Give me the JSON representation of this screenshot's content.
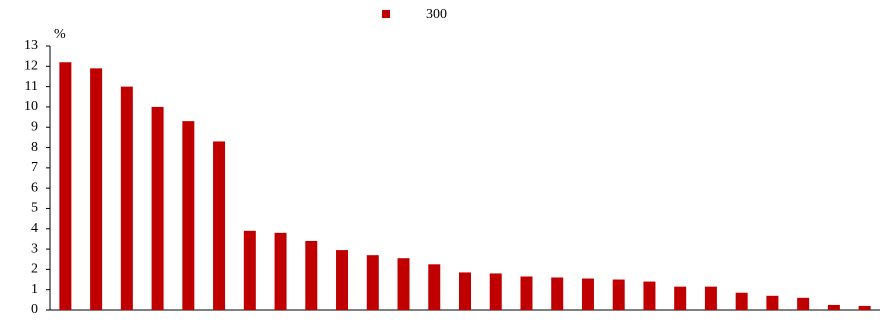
{
  "chart_data": {
    "type": "bar",
    "y_label": "%",
    "categories": [
      null,
      null,
      null,
      null,
      null,
      null,
      null,
      null,
      null,
      null,
      null,
      null,
      null,
      null,
      null,
      null,
      null,
      null,
      null,
      null,
      null,
      null,
      null,
      null,
      null,
      null,
      null
    ],
    "series": [
      {
        "name": "300",
        "color": "#c00000",
        "values": [
          12.2,
          11.9,
          11.0,
          10.0,
          9.3,
          8.3,
          3.9,
          3.8,
          3.4,
          2.95,
          2.7,
          2.55,
          2.25,
          1.85,
          1.8,
          1.65,
          1.6,
          1.55,
          1.5,
          1.4,
          1.15,
          1.15,
          0.85,
          0.7,
          0.6,
          0.25,
          0.2
        ]
      }
    ],
    "ylim": [
      0,
      13
    ],
    "yticks": [
      0,
      1,
      2,
      3,
      4,
      5,
      6,
      7,
      8,
      9,
      10,
      11,
      12,
      13
    ],
    "grid": false,
    "legend": "top"
  }
}
